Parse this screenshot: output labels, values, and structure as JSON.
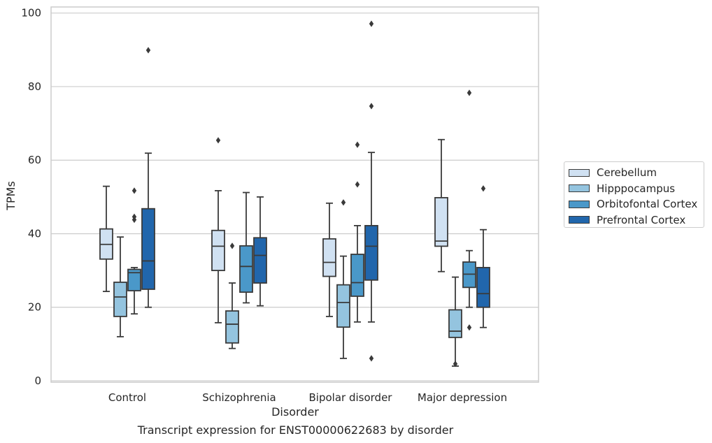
{
  "chart_data": {
    "type": "box",
    "caption": "Transcript expression for ENST00000622683 by disorder",
    "xlabel": "Disorder",
    "ylabel": "TPMs",
    "ylim": [
      0,
      100
    ],
    "yticks": [
      0,
      20,
      40,
      60,
      80,
      100
    ],
    "grid": "horizontal",
    "legend_position": "right",
    "categories": [
      "Control",
      "Schizophrenia",
      "Bipolar disorder",
      "Major depression"
    ],
    "series": [
      {
        "name": "Cerebellum",
        "color": "#d0e1f2",
        "boxes": [
          {
            "whisker_low": 24.3,
            "q1": 33.1,
            "median": 37.1,
            "q3": 41.3,
            "whisker_high": 52.9,
            "outliers": []
          },
          {
            "whisker_low": 15.8,
            "q1": 30.0,
            "median": 36.6,
            "q3": 40.9,
            "whisker_high": 51.7,
            "outliers": [
              65.4
            ]
          },
          {
            "whisker_low": 17.5,
            "q1": 28.4,
            "median": 32.2,
            "q3": 38.6,
            "whisker_high": 48.3,
            "outliers": []
          },
          {
            "whisker_low": 29.7,
            "q1": 36.6,
            "median": 38.0,
            "q3": 49.8,
            "whisker_high": 65.6,
            "outliers": []
          }
        ]
      },
      {
        "name": "Hipppocampus",
        "color": "#94c4df",
        "boxes": [
          {
            "whisker_low": 12.0,
            "q1": 17.5,
            "median": 22.8,
            "q3": 26.8,
            "whisker_high": 39.1,
            "outliers": []
          },
          {
            "whisker_low": 8.8,
            "q1": 10.3,
            "median": 15.4,
            "q3": 19.0,
            "whisker_high": 26.6,
            "outliers": [
              36.7
            ]
          },
          {
            "whisker_low": 6.1,
            "q1": 14.6,
            "median": 21.3,
            "q3": 26.1,
            "whisker_high": 33.9,
            "outliers": [
              48.5
            ]
          },
          {
            "whisker_low": 4.0,
            "q1": 11.8,
            "median": 13.5,
            "q3": 19.3,
            "whisker_high": 28.2,
            "outliers": [
              4.6
            ]
          }
        ]
      },
      {
        "name": "Orbitofontal Cortex",
        "color": "#4a98c9",
        "boxes": [
          {
            "whisker_low": 18.2,
            "q1": 24.5,
            "median": 29.4,
            "q3": 30.3,
            "whisker_high": 30.8,
            "outliers": [
              43.8,
              44.6,
              51.7
            ]
          },
          {
            "whisker_low": 21.2,
            "q1": 24.1,
            "median": 31.1,
            "q3": 36.7,
            "whisker_high": 51.2,
            "outliers": []
          },
          {
            "whisker_low": 16.0,
            "q1": 23.0,
            "median": 26.7,
            "q3": 34.4,
            "whisker_high": 42.2,
            "outliers": [
              53.4,
              64.2
            ]
          },
          {
            "whisker_low": 20.0,
            "q1": 25.4,
            "median": 29.0,
            "q3": 32.3,
            "whisker_high": 35.4,
            "outliers": [
              14.5,
              78.3
            ]
          }
        ]
      },
      {
        "name": "Prefrontal Cortex",
        "color": "#2166ac",
        "boxes": [
          {
            "whisker_low": 20.0,
            "q1": 24.9,
            "median": 32.6,
            "q3": 46.8,
            "whisker_high": 61.9,
            "outliers": [
              89.9
            ]
          },
          {
            "whisker_low": 20.4,
            "q1": 26.6,
            "median": 34.1,
            "q3": 38.9,
            "whisker_high": 50.0,
            "outliers": []
          },
          {
            "whisker_low": 16.0,
            "q1": 27.4,
            "median": 36.6,
            "q3": 42.2,
            "whisker_high": 62.1,
            "outliers": [
              6.1,
              74.7,
              97.1
            ]
          },
          {
            "whisker_low": 14.5,
            "q1": 20.0,
            "median": 23.7,
            "q3": 30.8,
            "whisker_high": 41.1,
            "outliers": [
              52.3
            ]
          }
        ]
      }
    ]
  }
}
